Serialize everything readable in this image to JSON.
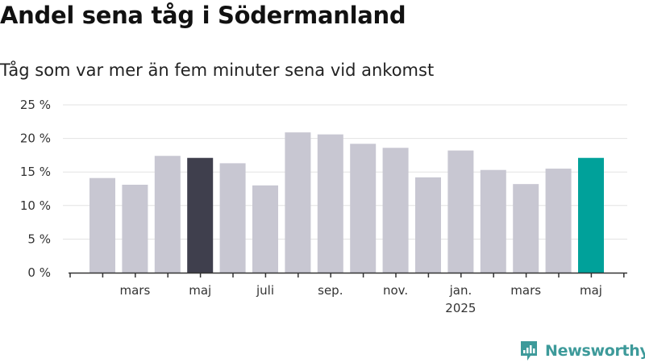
{
  "chart_data": {
    "type": "bar",
    "title": "Andel sena tåg i Södermanland",
    "subtitle": "Tåg som var mer än fem minuter sena vid ankomst",
    "y_tick_labels": [
      "0 %",
      "5 %",
      "10 %",
      "15 %",
      "20 %",
      "25 %"
    ],
    "x_tick_labels": [
      {
        "index": 1,
        "label": "mars",
        "sublabel": ""
      },
      {
        "index": 3,
        "label": "maj",
        "sublabel": ""
      },
      {
        "index": 5,
        "label": "juli",
        "sublabel": ""
      },
      {
        "index": 7,
        "label": "sep.",
        "sublabel": ""
      },
      {
        "index": 9,
        "label": "nov.",
        "sublabel": ""
      },
      {
        "index": 11,
        "label": "jan.",
        "sublabel": "2025"
      },
      {
        "index": 13,
        "label": "mars",
        "sublabel": ""
      },
      {
        "index": 15,
        "label": "maj",
        "sublabel": ""
      }
    ],
    "ylim": [
      0,
      25
    ],
    "grid": true,
    "values": [
      14.1,
      13.1,
      17.4,
      17.1,
      16.3,
      13.0,
      20.9,
      20.6,
      19.2,
      18.6,
      14.2,
      18.2,
      15.3,
      13.2,
      15.5,
      17.1
    ],
    "highlight": {
      "3": "#3f3f4d",
      "15": "#00a19a"
    },
    "colors": {
      "bar": "#c8c7d2",
      "grid": "#e3e3e3",
      "axis": "#333333"
    }
  },
  "brand": {
    "name": "Newsworthy",
    "color": "#3d9a9a"
  }
}
